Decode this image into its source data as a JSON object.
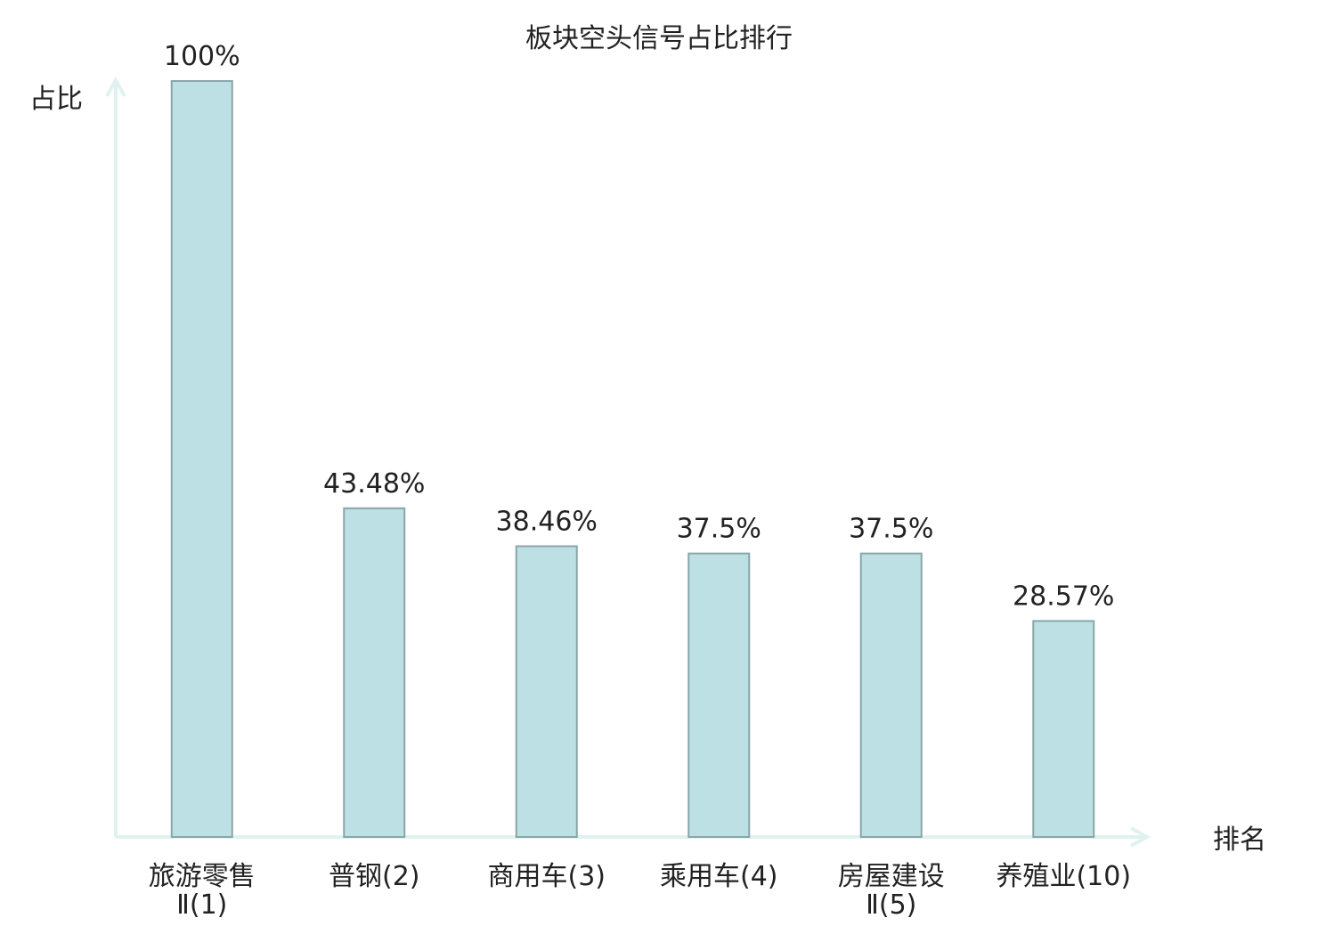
{
  "chart_data": {
    "type": "bar",
    "title": "板块空头信号占比排行",
    "ylabel": "占比",
    "xlabel": "排名",
    "categories": [
      {
        "name_line1": "旅游零售",
        "name_line2": "Ⅱ(1)",
        "highlight": false
      },
      {
        "name_line1": "普钢(2)",
        "name_line2": "",
        "highlight": false
      },
      {
        "name_line1": "商用车(3)",
        "name_line2": "",
        "highlight": false
      },
      {
        "name_line1": "乘用车(4)",
        "name_line2": "",
        "highlight": false
      },
      {
        "name_line1": "房屋建设",
        "name_line2": "Ⅱ(5)",
        "highlight": false
      },
      {
        "name_line1": "养殖业(10)",
        "name_line2": "",
        "highlight": true
      }
    ],
    "values": [
      100,
      43.48,
      38.46,
      37.5,
      37.5,
      28.57
    ],
    "value_labels": [
      "100%",
      "43.48%",
      "38.46%",
      "37.5%",
      "37.5%",
      "28.57%"
    ],
    "ylim": [
      0,
      100
    ],
    "grid": false,
    "colors": {
      "bar_fill": "#bce0e3",
      "bar_stroke": "#8aa6a9",
      "axis": "#e0f2ef",
      "text": "#222222",
      "highlight_text": "#e01b1b"
    }
  }
}
